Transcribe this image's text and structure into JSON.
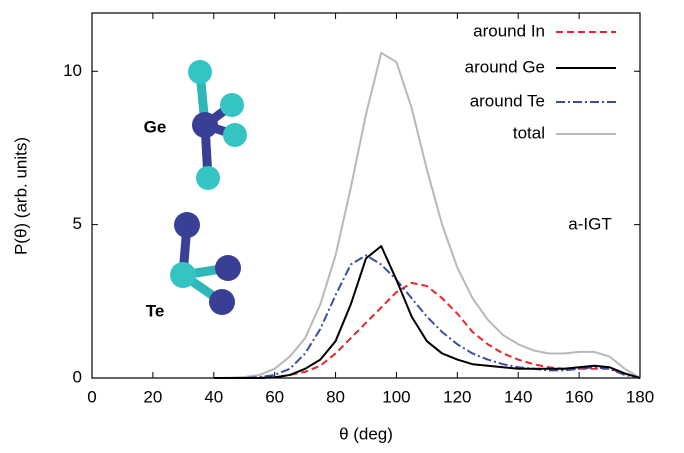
{
  "chart_data": {
    "type": "line",
    "xlabel": "θ (deg)",
    "ylabel": "P(θ) (arb. units)",
    "annotations": [
      "a-IGT",
      "Ge",
      "Te"
    ],
    "x": [
      40,
      45,
      50,
      55,
      60,
      65,
      70,
      75,
      80,
      85,
      90,
      95,
      100,
      105,
      110,
      115,
      120,
      125,
      130,
      135,
      140,
      145,
      150,
      155,
      160,
      165,
      170,
      175,
      180
    ],
    "series": [
      {
        "name": "around In",
        "color": "#e8262b",
        "dash": "7,4",
        "values": [
          0,
          0,
          0,
          0,
          0.02,
          0.1,
          0.2,
          0.4,
          0.8,
          1.3,
          1.8,
          2.3,
          2.8,
          3.1,
          3.0,
          2.6,
          2.1,
          1.5,
          1.1,
          0.8,
          0.6,
          0.45,
          0.35,
          0.3,
          0.3,
          0.3,
          0.3,
          0.15,
          0
        ]
      },
      {
        "name": "around Ge",
        "color": "#000000",
        "dash": "none",
        "values": [
          0,
          0,
          0,
          0,
          0.02,
          0.1,
          0.3,
          0.6,
          1.2,
          2.4,
          3.9,
          4.3,
          3.2,
          2.0,
          1.2,
          0.8,
          0.6,
          0.45,
          0.4,
          0.35,
          0.3,
          0.3,
          0.3,
          0.3,
          0.35,
          0.4,
          0.35,
          0.15,
          0
        ]
      },
      {
        "name": "around Te",
        "color": "#3a4ea8",
        "dash": "9,3,2,3",
        "values": [
          0,
          0,
          0,
          0.03,
          0.1,
          0.3,
          0.8,
          1.6,
          2.7,
          3.7,
          4.0,
          3.7,
          3.2,
          2.6,
          2.0,
          1.5,
          1.1,
          0.8,
          0.6,
          0.45,
          0.35,
          0.3,
          0.25,
          0.25,
          0.3,
          0.35,
          0.3,
          0.1,
          0
        ]
      },
      {
        "name": "total",
        "color": "#b8b8b8",
        "dash": "none",
        "values": [
          0,
          0.01,
          0.03,
          0.1,
          0.3,
          0.7,
          1.3,
          2.4,
          4.0,
          6.2,
          8.6,
          10.6,
          10.3,
          8.8,
          6.8,
          5.0,
          3.6,
          2.6,
          1.9,
          1.4,
          1.1,
          0.9,
          0.8,
          0.8,
          0.85,
          0.85,
          0.7,
          0.3,
          0
        ]
      }
    ],
    "xlim": [
      0,
      180
    ],
    "xticks": [
      0,
      20,
      40,
      60,
      80,
      100,
      120,
      140,
      160,
      180
    ],
    "ylim": [
      0,
      11.9
    ],
    "yticks": [
      0,
      5,
      10
    ],
    "legend": "top-right"
  }
}
